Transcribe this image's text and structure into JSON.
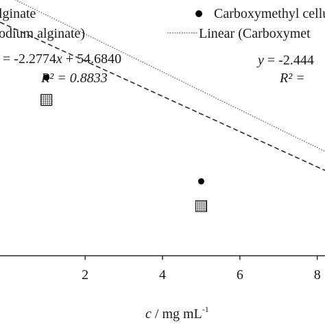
{
  "chart_data": {
    "type": "scatter",
    "xlabel_italic": "c",
    "xlabel_rest": " / mg mL",
    "xlabel_sup": "-1",
    "xlim": [
      -0.2,
      8.2
    ],
    "ylim": [
      25,
      58
    ],
    "x_ticks": [
      2,
      4,
      6,
      8
    ],
    "x_tick_labels": [
      "2",
      "4",
      "6",
      "8"
    ],
    "series": [
      {
        "name": "Carboxymethyl cellu",
        "marker": "filled-circle",
        "color": "#000000",
        "x": [
          1,
          5
        ],
        "y": [
          48.0,
          34.6
        ]
      },
      {
        "name": "lginate",
        "marker": "hatched-square",
        "color": "#000000",
        "x": [
          1,
          5
        ],
        "y": [
          45.1,
          31.4
        ]
      }
    ],
    "trendlines": [
      {
        "name": "odium alginate)",
        "style": "dashed",
        "slope": -2.2774,
        "intercept": 54.684,
        "x_range": [
          -0.2,
          8.2
        ],
        "equation_prefix": "= -2.2774",
        "equation_var": "x",
        "equation_suffix": " + 54.6840",
        "r2_label": "R² = 0.8833"
      },
      {
        "name": "Linear (Carboxymet",
        "style": "dotted",
        "slope": -2.444,
        "intercept": 58.5,
        "x_range": [
          -0.2,
          8.2
        ],
        "equation_y": "y",
        "equation_prefix": " = -2.444",
        "r2_label": "R² ="
      }
    ],
    "legend": {
      "placement": "top",
      "entries": [
        "lginate",
        "odium alginate)",
        "Carboxymethyl cellu",
        "Linear (Carboxymet"
      ]
    },
    "grid": false
  }
}
